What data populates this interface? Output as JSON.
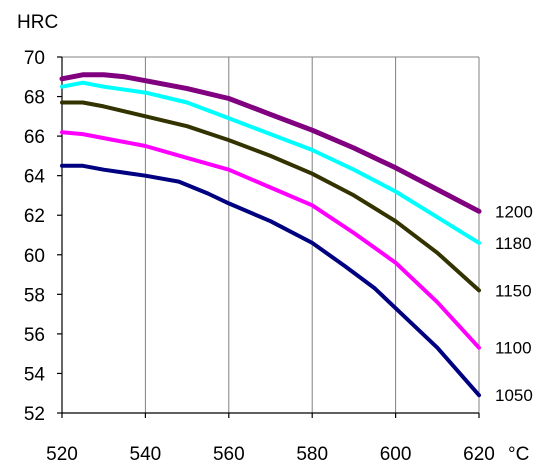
{
  "chart_data": {
    "type": "line",
    "ylabel": "HRC",
    "x_unit_label": "°C",
    "x_ticks": [
      "520",
      "540",
      "560",
      "580",
      "600",
      "620"
    ],
    "y_ticks": [
      "52",
      "54",
      "56",
      "58",
      "60",
      "62",
      "64",
      "66",
      "68",
      "70"
    ],
    "xlim": [
      520,
      620
    ],
    "ylim": [
      52,
      70
    ],
    "grid": "vertical",
    "series": [
      {
        "name": "1200",
        "color": "#800080",
        "width": 5,
        "x": [
          520,
          525,
          530,
          535,
          540,
          550,
          560,
          570,
          580,
          590,
          600,
          610,
          620
        ],
        "y": [
          68.9,
          69.1,
          69.1,
          69.0,
          68.8,
          68.4,
          67.9,
          67.1,
          66.3,
          65.4,
          64.4,
          63.3,
          62.2
        ]
      },
      {
        "name": "1180",
        "color": "#00ffff",
        "width": 4,
        "x": [
          520,
          525,
          530,
          540,
          550,
          560,
          570,
          580,
          590,
          600,
          610,
          620
        ],
        "y": [
          68.5,
          68.7,
          68.5,
          68.2,
          67.7,
          66.9,
          66.1,
          65.3,
          64.3,
          63.2,
          61.9,
          60.6
        ]
      },
      {
        "name": "1150",
        "color": "#333300",
        "width": 4,
        "x": [
          520,
          525,
          530,
          540,
          550,
          560,
          570,
          580,
          590,
          600,
          610,
          620
        ],
        "y": [
          67.7,
          67.7,
          67.5,
          67.0,
          66.5,
          65.8,
          65.0,
          64.1,
          63.0,
          61.7,
          60.1,
          58.2
        ]
      },
      {
        "name": "1100",
        "color": "#ff00ff",
        "width": 4,
        "x": [
          520,
          525,
          530,
          540,
          550,
          560,
          570,
          580,
          590,
          600,
          610,
          620
        ],
        "y": [
          66.2,
          66.1,
          65.9,
          65.5,
          64.9,
          64.3,
          63.4,
          62.5,
          61.1,
          59.6,
          57.6,
          55.3
        ]
      },
      {
        "name": "1050",
        "color": "#000080",
        "width": 4,
        "x": [
          520,
          525,
          530,
          540,
          548,
          555,
          560,
          570,
          580,
          588,
          595,
          600,
          610,
          620
        ],
        "y": [
          64.5,
          64.5,
          64.3,
          64.0,
          63.7,
          63.1,
          62.6,
          61.7,
          60.6,
          59.4,
          58.3,
          57.3,
          55.3,
          52.9
        ]
      }
    ]
  }
}
